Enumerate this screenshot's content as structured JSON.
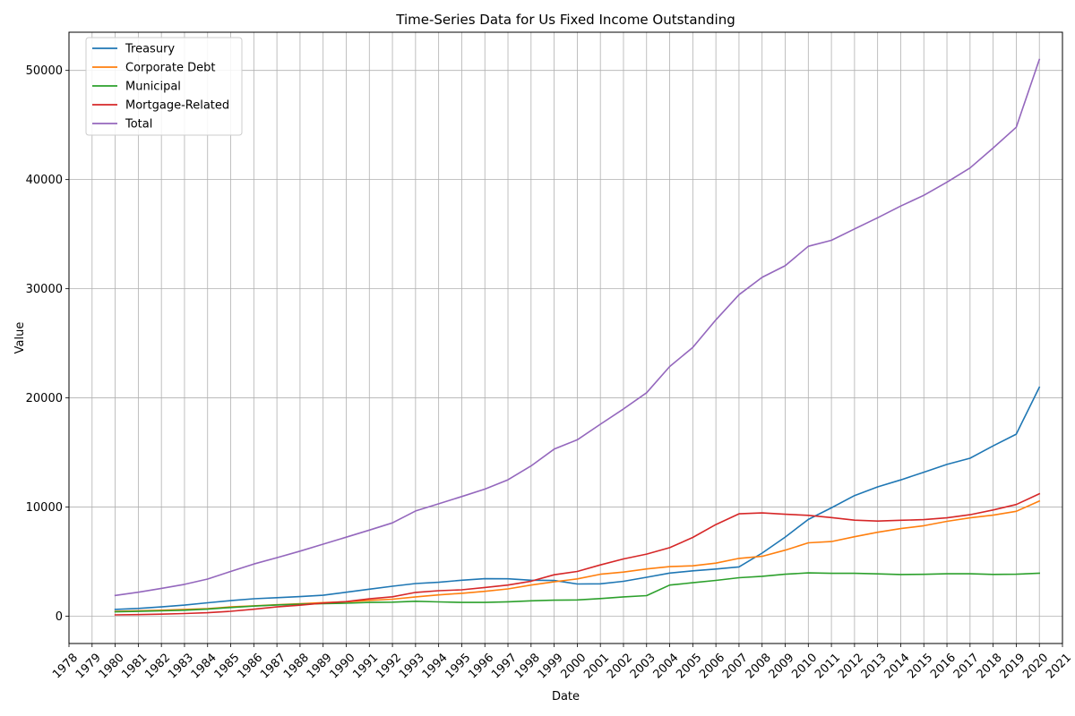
{
  "chart_data": {
    "type": "line",
    "title": "Time-Series Data for Us Fixed Income Outstanding",
    "xlabel": "Date",
    "ylabel": "Value",
    "x": [
      1980,
      1981,
      1982,
      1983,
      1984,
      1985,
      1986,
      1987,
      1988,
      1989,
      1990,
      1991,
      1992,
      1993,
      1994,
      1995,
      1996,
      1997,
      1998,
      1999,
      2000,
      2001,
      2002,
      2003,
      2004,
      2005,
      2006,
      2007,
      2008,
      2009,
      2010,
      2011,
      2012,
      2013,
      2014,
      2015,
      2016,
      2017,
      2018,
      2019,
      2020
    ],
    "x_ticks": [
      "1978",
      "1979",
      "1980",
      "1981",
      "1982",
      "1983",
      "1984",
      "1985",
      "1986",
      "1987",
      "1988",
      "1989",
      "1990",
      "1991",
      "1992",
      "1993",
      "1994",
      "1995",
      "1996",
      "1997",
      "1998",
      "1999",
      "2000",
      "2001",
      "2002",
      "2003",
      "2004",
      "2005",
      "2006",
      "2007",
      "2008",
      "2009",
      "2010",
      "2011",
      "2012",
      "2013",
      "2014",
      "2015",
      "2016",
      "2017",
      "2018",
      "2019",
      "2020",
      "2021"
    ],
    "xlim": [
      1978,
      2021
    ],
    "ylim": [
      -2500,
      53500
    ],
    "y_ticks": [
      0,
      10000,
      20000,
      30000,
      40000,
      50000
    ],
    "grid": true,
    "legend_position": "top-left",
    "series": [
      {
        "name": "Treasury",
        "color": "#1f77b4",
        "values": [
          620,
          710,
          850,
          1020,
          1230,
          1430,
          1600,
          1700,
          1800,
          1920,
          2200,
          2480,
          2750,
          2990,
          3110,
          3300,
          3440,
          3430,
          3300,
          3270,
          2950,
          2970,
          3200,
          3570,
          3950,
          4160,
          4320,
          4520,
          5780,
          7250,
          8860,
          9930,
          11050,
          11850,
          12490,
          13190,
          13910,
          14470,
          15600,
          16680,
          20970
        ]
      },
      {
        "name": "Corporate Debt",
        "color": "#ff7f0e",
        "values": [
          450,
          500,
          550,
          620,
          700,
          850,
          950,
          1050,
          1150,
          1250,
          1320,
          1450,
          1560,
          1770,
          1950,
          2100,
          2280,
          2500,
          2850,
          3150,
          3420,
          3850,
          4040,
          4330,
          4540,
          4620,
          4860,
          5300,
          5490,
          6050,
          6720,
          6840,
          7280,
          7690,
          8030,
          8290,
          8690,
          9010,
          9260,
          9610,
          10550
        ]
      },
      {
        "name": "Municipal",
        "color": "#2ca02c",
        "values": [
          400,
          440,
          490,
          550,
          650,
          800,
          930,
          1030,
          1100,
          1150,
          1190,
          1260,
          1290,
          1370,
          1310,
          1260,
          1260,
          1320,
          1410,
          1470,
          1490,
          1620,
          1770,
          1890,
          2850,
          3070,
          3280,
          3530,
          3660,
          3850,
          3970,
          3930,
          3930,
          3880,
          3820,
          3840,
          3890,
          3890,
          3830,
          3850,
          3940
        ]
      },
      {
        "name": "Mortgage-Related",
        "color": "#d62728",
        "values": [
          120,
          150,
          190,
          250,
          320,
          450,
          640,
          850,
          1010,
          1210,
          1340,
          1590,
          1780,
          2180,
          2340,
          2420,
          2630,
          2850,
          3210,
          3800,
          4100,
          4700,
          5250,
          5690,
          6280,
          7220,
          8400,
          9380,
          9460,
          9340,
          9240,
          9040,
          8800,
          8720,
          8790,
          8850,
          9010,
          9300,
          9730,
          10230,
          11220
        ]
      },
      {
        "name": "Total",
        "color": "#9467bd",
        "values": [
          1900,
          2200,
          2550,
          2920,
          3400,
          4100,
          4780,
          5360,
          5960,
          6600,
          7240,
          7890,
          8550,
          9640,
          10300,
          10960,
          11640,
          12500,
          13770,
          15310,
          16160,
          17590,
          18990,
          20470,
          22880,
          24620,
          27150,
          29450,
          31040,
          32110,
          33890,
          34440,
          35480,
          36500,
          37580,
          38560,
          39760,
          41060,
          42890,
          44790,
          51000
        ]
      }
    ]
  }
}
